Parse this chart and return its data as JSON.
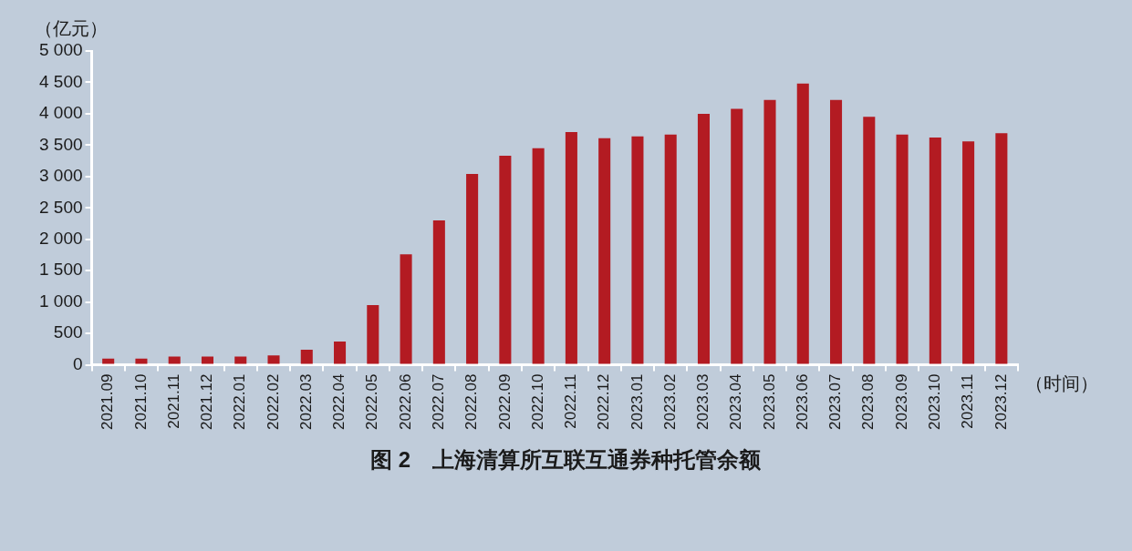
{
  "chart_data": {
    "type": "bar",
    "title": "图 2　上海清算所互联互通券种托管余额",
    "ylabel": "（亿元）",
    "xlabel": "（时间）",
    "categories": [
      "2021.09",
      "2021.10",
      "2021.11",
      "2021.12",
      "2022.01",
      "2022.02",
      "2022.03",
      "2022.04",
      "2022.05",
      "2022.06",
      "2022.07",
      "2022.08",
      "2022.09",
      "2022.10",
      "2022.11",
      "2022.12",
      "2023.01",
      "2023.02",
      "2023.03",
      "2023.04",
      "2023.05",
      "2023.06",
      "2023.07",
      "2023.08",
      "2023.09",
      "2023.10",
      "2023.11",
      "2023.12"
    ],
    "values": [
      100,
      100,
      130,
      130,
      130,
      150,
      240,
      370,
      950,
      1760,
      2300,
      3040,
      3330,
      3450,
      3710,
      3610,
      3640,
      3670,
      4000,
      4080,
      4220,
      4480,
      4220,
      3950,
      3670,
      3620,
      3560,
      3690
    ],
    "color": "#b31b22",
    "ylim": [
      0,
      5000
    ],
    "yticks": [
      0,
      500,
      {
        "value": 1000,
        "label": "1 000"
      },
      {
        "value": 1500,
        "label": "1 500"
      },
      {
        "value": 2000,
        "label": "2 000"
      },
      {
        "value": 2500,
        "label": "2 500"
      },
      {
        "value": 3000,
        "label": "3 000"
      },
      {
        "value": 3500,
        "label": "3 500"
      },
      {
        "value": 4000,
        "label": "4 000"
      },
      {
        "value": 4500,
        "label": "4 500"
      },
      {
        "value": 5000,
        "label": "5 000"
      }
    ]
  }
}
